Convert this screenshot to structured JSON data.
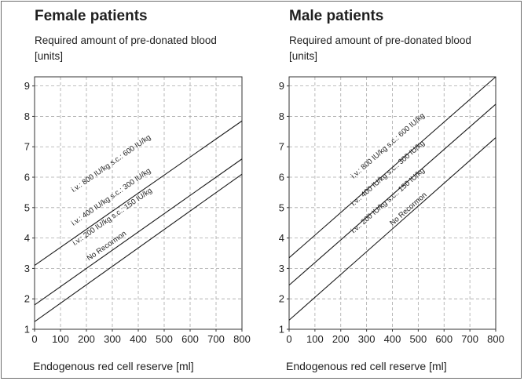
{
  "chart_data": [
    {
      "type": "line",
      "title": "Female patients",
      "ylabel_line1": "Required amount of pre-donated blood",
      "ylabel_line2": "[units]",
      "xlabel": "Endogenous red cell reserve [ml]",
      "xlim": [
        0,
        800
      ],
      "ylim": [
        1,
        9.3
      ],
      "xticks": [
        0,
        100,
        200,
        300,
        400,
        500,
        600,
        700,
        800
      ],
      "yticks": [
        1,
        2,
        3,
        4,
        5,
        6,
        7,
        8,
        9
      ],
      "grid": true,
      "series": [
        {
          "x": [
            0,
            800
          ],
          "y": [
            3.1,
            7.85
          ]
        },
        {
          "x": [
            0,
            800
          ],
          "y": [
            1.8,
            6.6
          ]
        },
        {
          "x": [
            0,
            800
          ],
          "y": [
            1.25,
            6.1
          ]
        }
      ],
      "annotations": [
        {
          "text": "i.v.: 800 IU/kg   s.c.: 600 IU/kg",
          "x": 150,
          "y": 5.5
        },
        {
          "text": "i.v.: 400 IU/kg   s.c.: 300 IU/kg",
          "x": 150,
          "y": 4.4
        },
        {
          "text": "i.v.: 200 IU/kg   s.c.: 150 IU/kg",
          "x": 155,
          "y": 3.75
        },
        {
          "text": "No Recormon",
          "x": 210,
          "y": 3.25
        }
      ]
    },
    {
      "type": "line",
      "title": "Male patients",
      "ylabel_line1": "Required amount of pre-donated blood",
      "ylabel_line2": "[units]",
      "xlabel": "Endogenous red cell reserve [ml]",
      "xlim": [
        0,
        800
      ],
      "ylim": [
        1,
        9.3
      ],
      "xticks": [
        0,
        100,
        200,
        300,
        400,
        500,
        600,
        700,
        800
      ],
      "yticks": [
        1,
        2,
        3,
        4,
        5,
        6,
        7,
        8,
        9
      ],
      "grid": true,
      "series": [
        {
          "x": [
            0,
            800
          ],
          "y": [
            3.35,
            9.3
          ]
        },
        {
          "x": [
            0,
            800
          ],
          "y": [
            2.45,
            8.4
          ]
        },
        {
          "x": [
            0,
            800
          ],
          "y": [
            1.3,
            7.3
          ]
        }
      ],
      "annotations": [
        {
          "text": "i.v.: 800 IU/kg   s.c.: 600 IU/kg",
          "x": 250,
          "y": 5.95
        },
        {
          "text": "i.v.: 400 IU/kg   s.c.: 300 IU/kg",
          "x": 250,
          "y": 5.05
        },
        {
          "text": "i.v.: 200 IU/kg   s.c.: 150 IU/kg",
          "x": 250,
          "y": 4.15
        },
        {
          "text": "No Recormon",
          "x": 400,
          "y": 4.4
        }
      ]
    }
  ]
}
